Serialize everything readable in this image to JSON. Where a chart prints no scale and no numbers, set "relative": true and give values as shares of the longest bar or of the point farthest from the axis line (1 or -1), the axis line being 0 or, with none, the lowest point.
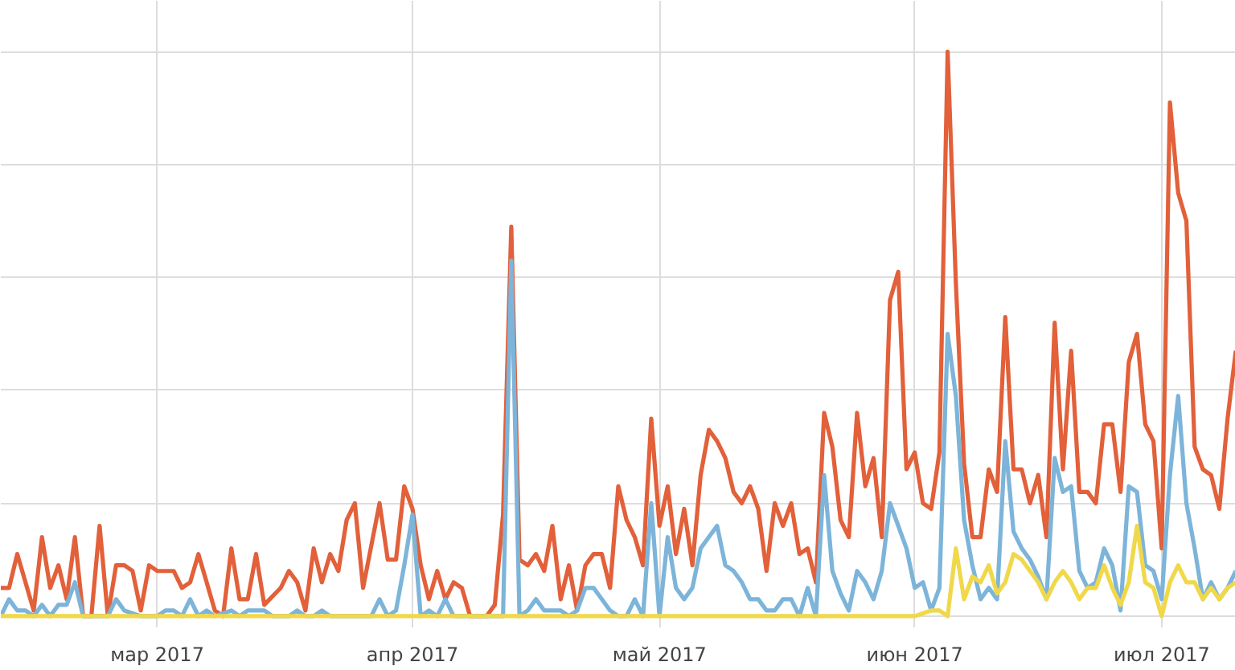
{
  "chart_data": {
    "type": "line",
    "relative": true,
    "grid": true,
    "line_style": "solid",
    "xlim": [
      "2017-02-10",
      "2017-07-10"
    ],
    "xticks": [
      {
        "value": "2017-03-01",
        "label": "мар 2017"
      },
      {
        "value": "2017-04-01",
        "label": "апр 2017"
      },
      {
        "value": "2017-05-01",
        "label": "май 2017"
      },
      {
        "value": "2017-06-01",
        "label": "июн 2017"
      },
      {
        "value": "2017-07-01",
        "label": "июл 2017"
      }
    ],
    "series": [
      {
        "color": "#e2603a",
        "x": [
          "2017-02-10",
          "2017-02-11",
          "2017-02-12",
          "2017-02-14",
          "2017-02-15",
          "2017-02-16",
          "2017-02-17",
          "2017-02-18",
          "2017-02-19",
          "2017-02-20",
          "2017-02-21",
          "2017-02-22",
          "2017-02-23",
          "2017-02-24",
          "2017-02-25",
          "2017-02-26",
          "2017-02-27",
          "2017-02-28",
          "2017-03-01",
          "2017-03-03",
          "2017-03-04",
          "2017-03-05",
          "2017-03-06",
          "2017-03-07",
          "2017-03-08",
          "2017-03-09",
          "2017-03-10",
          "2017-03-11",
          "2017-03-12",
          "2017-03-13",
          "2017-03-14",
          "2017-03-16",
          "2017-03-17",
          "2017-03-18",
          "2017-03-19",
          "2017-03-20",
          "2017-03-21",
          "2017-03-22",
          "2017-03-23",
          "2017-03-24",
          "2017-03-25",
          "2017-03-26",
          "2017-03-28",
          "2017-03-29",
          "2017-03-30",
          "2017-03-31",
          "2017-04-01",
          "2017-04-02",
          "2017-04-03",
          "2017-04-04",
          "2017-04-05",
          "2017-04-06",
          "2017-04-07",
          "2017-04-08",
          "2017-04-10",
          "2017-04-11",
          "2017-04-12",
          "2017-04-13",
          "2017-04-14",
          "2017-04-15",
          "2017-04-16",
          "2017-04-17",
          "2017-04-18",
          "2017-04-19",
          "2017-04-20",
          "2017-04-21",
          "2017-04-22",
          "2017-04-23",
          "2017-04-24",
          "2017-04-25",
          "2017-04-26",
          "2017-04-27",
          "2017-04-28",
          "2017-04-29",
          "2017-04-30",
          "2017-05-01",
          "2017-05-02",
          "2017-05-03",
          "2017-05-04",
          "2017-05-05",
          "2017-05-06",
          "2017-05-07",
          "2017-05-08",
          "2017-05-09",
          "2017-05-10",
          "2017-05-11",
          "2017-05-12",
          "2017-05-13",
          "2017-05-14",
          "2017-05-15",
          "2017-05-16",
          "2017-05-17",
          "2017-05-18",
          "2017-05-19",
          "2017-05-20",
          "2017-05-21",
          "2017-05-22",
          "2017-05-23",
          "2017-05-24",
          "2017-05-25",
          "2017-05-26",
          "2017-05-27",
          "2017-05-28",
          "2017-05-29",
          "2017-05-30",
          "2017-05-31",
          "2017-06-01",
          "2017-06-02",
          "2017-06-03",
          "2017-06-04",
          "2017-06-05",
          "2017-06-06",
          "2017-06-07",
          "2017-06-08",
          "2017-06-09",
          "2017-06-10",
          "2017-06-11",
          "2017-06-12",
          "2017-06-13",
          "2017-06-14",
          "2017-06-15",
          "2017-06-16",
          "2017-06-17",
          "2017-06-18",
          "2017-06-19",
          "2017-06-20",
          "2017-06-21",
          "2017-06-22",
          "2017-06-23",
          "2017-06-24",
          "2017-06-25",
          "2017-06-26",
          "2017-06-27",
          "2017-06-28",
          "2017-06-29",
          "2017-06-30",
          "2017-07-01",
          "2017-07-02",
          "2017-07-03",
          "2017-07-04",
          "2017-07-05",
          "2017-07-06",
          "2017-07-07",
          "2017-07-08",
          "2017-07-09",
          "2017-07-10"
        ],
        "values": [
          0.05,
          0.05,
          0.11,
          0.01,
          0.14,
          0.05,
          0.09,
          0.03,
          0.14,
          0,
          0,
          0.16,
          0,
          0.09,
          0.09,
          0.08,
          0.01,
          0.09,
          0.08,
          0.08,
          0.05,
          0.06,
          0.11,
          0.06,
          0.01,
          0,
          0.12,
          0.03,
          0.03,
          0.11,
          0.02,
          0.05,
          0.08,
          0.06,
          0.01,
          0.12,
          0.06,
          0.11,
          0.08,
          0.17,
          0.2,
          0.05,
          0.2,
          0.1,
          0.1,
          0.23,
          0.19,
          0.09,
          0.03,
          0.08,
          0.03,
          0.06,
          0.05,
          0,
          0,
          0.02,
          0.18,
          0.69,
          0.1,
          0.09,
          0.11,
          0.08,
          0.16,
          0.03,
          0.09,
          0.01,
          0.09,
          0.11,
          0.11,
          0.05,
          0.23,
          0.17,
          0.14,
          0.09,
          0.35,
          0.16,
          0.23,
          0.11,
          0.19,
          0.09,
          0.25,
          0.33,
          0.31,
          0.28,
          0.22,
          0.2,
          0.23,
          0.19,
          0.08,
          0.2,
          0.16,
          0.2,
          0.11,
          0.12,
          0.06,
          0.36,
          0.3,
          0.17,
          0.14,
          0.36,
          0.23,
          0.28,
          0.14,
          0.56,
          0.61,
          0.26,
          0.29,
          0.2,
          0.19,
          0.29,
          1,
          0.59,
          0.27,
          0.14,
          0.14,
          0.26,
          0.22,
          0.53,
          0.26,
          0.26,
          0.2,
          0.25,
          0.14,
          0.52,
          0.26,
          0.47,
          0.22,
          0.22,
          0.2,
          0.34,
          0.34,
          0.22,
          0.45,
          0.5,
          0.34,
          0.31,
          0.12,
          0.91,
          0.75,
          0.7,
          0.3,
          0.26,
          0.25,
          0.19,
          0.35,
          0.47
        ]
      },
      {
        "color": "#7db4d9",
        "x": [
          "2017-02-10",
          "2017-02-11",
          "2017-02-12",
          "2017-02-13",
          "2017-02-14",
          "2017-02-15",
          "2017-02-16",
          "2017-02-17",
          "2017-02-18",
          "2017-02-19",
          "2017-02-20",
          "2017-02-23",
          "2017-02-24",
          "2017-02-25",
          "2017-02-27",
          "2017-03-01",
          "2017-03-02",
          "2017-03-03",
          "2017-03-04",
          "2017-03-05",
          "2017-03-06",
          "2017-03-07",
          "2017-03-08",
          "2017-03-10",
          "2017-03-11",
          "2017-03-12",
          "2017-03-14",
          "2017-03-15",
          "2017-03-17",
          "2017-03-18",
          "2017-03-19",
          "2017-03-20",
          "2017-03-21",
          "2017-03-22",
          "2017-03-27",
          "2017-03-28",
          "2017-03-29",
          "2017-03-30",
          "2017-03-31",
          "2017-04-01",
          "2017-04-02",
          "2017-04-03",
          "2017-04-04",
          "2017-04-05",
          "2017-04-06",
          "2017-04-12",
          "2017-04-13",
          "2017-04-14",
          "2017-04-15",
          "2017-04-16",
          "2017-04-17",
          "2017-04-19",
          "2017-04-20",
          "2017-04-21",
          "2017-04-22",
          "2017-04-23",
          "2017-04-25",
          "2017-04-26",
          "2017-04-27",
          "2017-04-28",
          "2017-04-29",
          "2017-04-30",
          "2017-05-01",
          "2017-05-02",
          "2017-05-03",
          "2017-05-04",
          "2017-05-05",
          "2017-05-06",
          "2017-05-07",
          "2017-05-08",
          "2017-05-09",
          "2017-05-10",
          "2017-05-11",
          "2017-05-12",
          "2017-05-13",
          "2017-05-14",
          "2017-05-15",
          "2017-05-16",
          "2017-05-17",
          "2017-05-18",
          "2017-05-19",
          "2017-05-20",
          "2017-05-21",
          "2017-05-22",
          "2017-05-23",
          "2017-05-24",
          "2017-05-25",
          "2017-05-26",
          "2017-05-27",
          "2017-05-28",
          "2017-05-29",
          "2017-05-30",
          "2017-05-31",
          "2017-06-01",
          "2017-06-02",
          "2017-06-03",
          "2017-06-04",
          "2017-06-05",
          "2017-06-06",
          "2017-06-07",
          "2017-06-08",
          "2017-06-09",
          "2017-06-10",
          "2017-06-11",
          "2017-06-12",
          "2017-06-13",
          "2017-06-14",
          "2017-06-15",
          "2017-06-16",
          "2017-06-17",
          "2017-06-18",
          "2017-06-19",
          "2017-06-20",
          "2017-06-21",
          "2017-06-22",
          "2017-06-23",
          "2017-06-24",
          "2017-06-25",
          "2017-06-26",
          "2017-06-27",
          "2017-06-28",
          "2017-06-29",
          "2017-06-30",
          "2017-07-01",
          "2017-07-02",
          "2017-07-03",
          "2017-07-04",
          "2017-07-05",
          "2017-07-06",
          "2017-07-07",
          "2017-07-08",
          "2017-07-09",
          "2017-07-10"
        ],
        "values": [
          0,
          0.03,
          0.01,
          0.01,
          0,
          0.02,
          0,
          0.02,
          0.02,
          0.06,
          0,
          0,
          0.03,
          0.01,
          0,
          0,
          0.01,
          0.01,
          0,
          0.03,
          0,
          0.01,
          0,
          0.01,
          0,
          0.01,
          0.01,
          0,
          0,
          0.01,
          0,
          0,
          0.01,
          0,
          0,
          0.03,
          0,
          0.01,
          0.09,
          0.18,
          0,
          0.01,
          0,
          0.03,
          0,
          0,
          0.63,
          0,
          0.01,
          0.03,
          0.01,
          0.01,
          0,
          0.01,
          0.05,
          0.05,
          0.01,
          0,
          0,
          0.03,
          0,
          0.2,
          0,
          0.14,
          0.05,
          0.03,
          0.05,
          0.12,
          0.14,
          0.16,
          0.09,
          0.08,
          0.06,
          0.03,
          0.03,
          0.01,
          0.01,
          0.03,
          0.03,
          0,
          0.05,
          0,
          0.25,
          0.08,
          0.04,
          0.01,
          0.08,
          0.06,
          0.03,
          0.08,
          0.2,
          0.16,
          0.12,
          0.05,
          0.06,
          0.01,
          0.05,
          0.5,
          0.39,
          0.17,
          0.09,
          0.03,
          0.05,
          0.03,
          0.31,
          0.15,
          0.12,
          0.1,
          0.07,
          0.03,
          0.28,
          0.22,
          0.23,
          0.08,
          0.05,
          0.06,
          0.12,
          0.09,
          0.01,
          0.23,
          0.22,
          0.09,
          0.08,
          0.03,
          0.25,
          0.39,
          0.2,
          0.12,
          0.03,
          0.06,
          0.03,
          0.05,
          0.08
        ]
      },
      {
        "color": "#f0d84a",
        "x": [
          "2017-02-10",
          "2017-06-01",
          "2017-06-03",
          "2017-06-04",
          "2017-06-05",
          "2017-06-06",
          "2017-06-07",
          "2017-06-08",
          "2017-06-09",
          "2017-06-10",
          "2017-06-11",
          "2017-06-12",
          "2017-06-13",
          "2017-06-14",
          "2017-06-15",
          "2017-06-16",
          "2017-06-17",
          "2017-06-18",
          "2017-06-19",
          "2017-06-20",
          "2017-06-21",
          "2017-06-22",
          "2017-06-23",
          "2017-06-24",
          "2017-06-25",
          "2017-06-26",
          "2017-06-27",
          "2017-06-28",
          "2017-06-29",
          "2017-06-30",
          "2017-07-01",
          "2017-07-02",
          "2017-07-03",
          "2017-07-04",
          "2017-07-05",
          "2017-07-06",
          "2017-07-07",
          "2017-07-08",
          "2017-07-09",
          "2017-07-10"
        ],
        "values": [
          0,
          0,
          0.01,
          0.01,
          0,
          0.12,
          0.03,
          0.07,
          0.06,
          0.09,
          0.04,
          0.06,
          0.11,
          0.1,
          0.08,
          0.06,
          0.03,
          0.06,
          0.08,
          0.06,
          0.03,
          0.05,
          0.05,
          0.09,
          0.05,
          0.02,
          0.06,
          0.16,
          0.06,
          0.05,
          0,
          0.06,
          0.09,
          0.06,
          0.06,
          0.03,
          0.05,
          0.03,
          0.05,
          0.06
        ]
      }
    ]
  }
}
